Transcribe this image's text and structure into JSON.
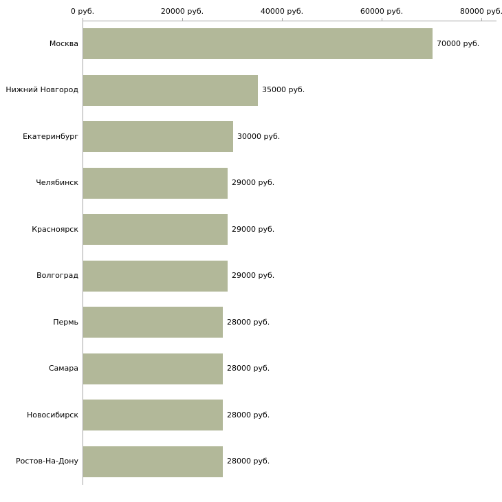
{
  "chart_data": {
    "type": "bar",
    "orientation": "horizontal",
    "title": "",
    "xlabel": "",
    "ylabel": "",
    "categories": [
      "Москва",
      "Нижний Новгород",
      "Екатеринбург",
      "Челябинск",
      "Красноярск",
      "Волгоград",
      "Пермь",
      "Самара",
      "Новосибирск",
      "Ростов-На-Дону"
    ],
    "values": [
      70000,
      35000,
      30000,
      29000,
      29000,
      29000,
      28000,
      28000,
      28000,
      28000
    ],
    "value_labels": [
      "70000 руб.",
      "35000 руб.",
      "30000 руб.",
      "29000 руб.",
      "29000 руб.",
      "29000 руб.",
      "28000 руб.",
      "28000 руб.",
      "28000 руб.",
      "28000 руб."
    ],
    "x_ticks": [
      0,
      20000,
      40000,
      60000,
      80000
    ],
    "x_tick_labels": [
      "0 руб.",
      "20000 руб.",
      "40000 руб.",
      "60000 руб.",
      "80000 руб."
    ],
    "xlim": [
      0,
      80000
    ],
    "grid": false,
    "legend_position": "none",
    "bar_color": "#b2b899",
    "axis_color": "#a3a3a3",
    "text_color": "#000000"
  }
}
